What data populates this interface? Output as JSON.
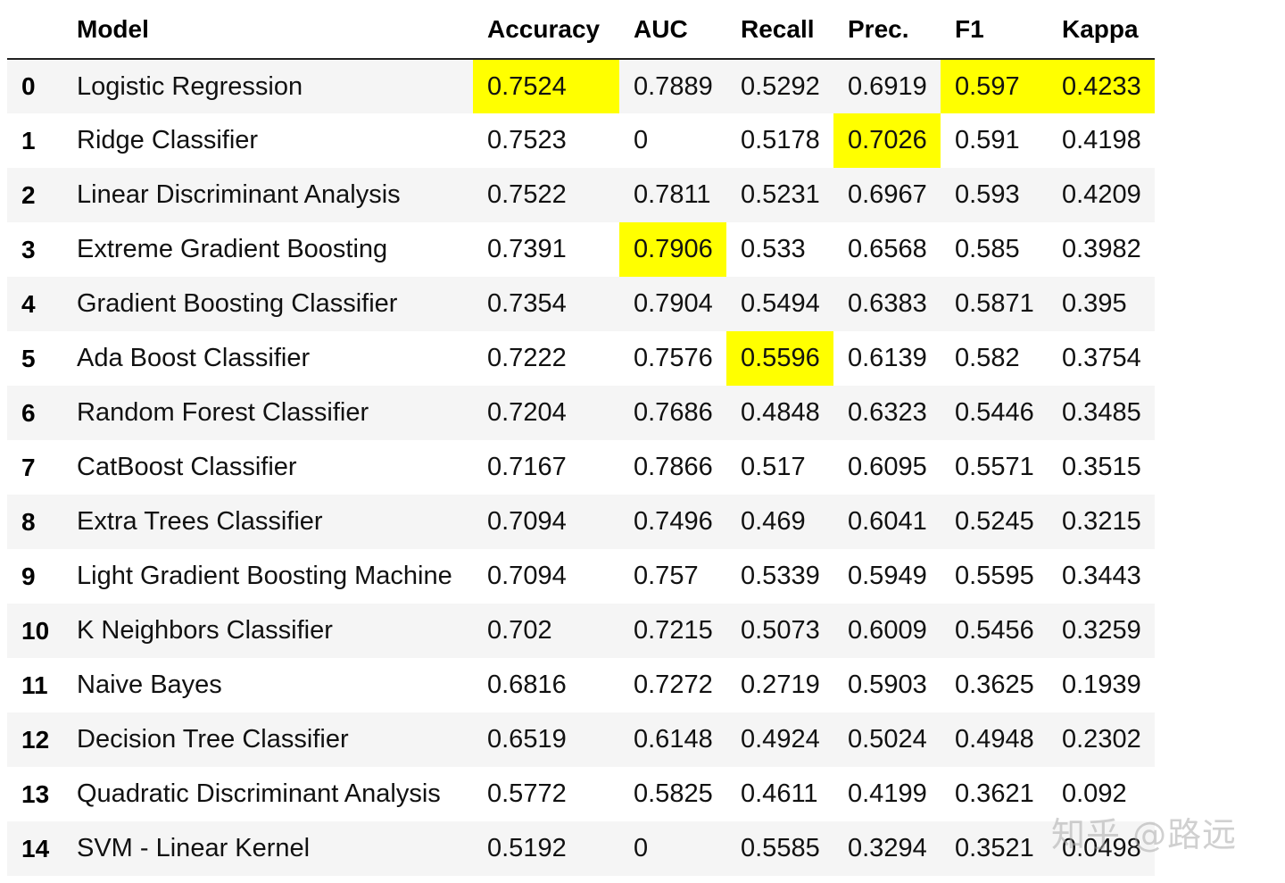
{
  "colors": {
    "highlight": "#ffff00",
    "row_stripe": "#f5f5f5",
    "text": "#000000"
  },
  "columns": [
    "",
    "Model",
    "Accuracy",
    "AUC",
    "Recall",
    "Prec.",
    "F1",
    "Kappa"
  ],
  "rows": [
    {
      "index": "0",
      "cells": [
        "Logistic Regression",
        "0.7524",
        "0.7889",
        "0.5292",
        "0.6919",
        "0.597",
        "0.4233"
      ],
      "highlight": [
        1,
        5,
        6
      ]
    },
    {
      "index": "1",
      "cells": [
        "Ridge Classifier",
        "0.7523",
        "0",
        "0.5178",
        "0.7026",
        "0.591",
        "0.4198"
      ],
      "highlight": [
        4
      ]
    },
    {
      "index": "2",
      "cells": [
        "Linear Discriminant Analysis",
        "0.7522",
        "0.7811",
        "0.5231",
        "0.6967",
        "0.593",
        "0.4209"
      ],
      "highlight": []
    },
    {
      "index": "3",
      "cells": [
        "Extreme Gradient Boosting",
        "0.7391",
        "0.7906",
        "0.533",
        "0.6568",
        "0.585",
        "0.3982"
      ],
      "highlight": [
        2
      ]
    },
    {
      "index": "4",
      "cells": [
        "Gradient Boosting Classifier",
        "0.7354",
        "0.7904",
        "0.5494",
        "0.6383",
        "0.5871",
        "0.395"
      ],
      "highlight": []
    },
    {
      "index": "5",
      "cells": [
        "Ada Boost Classifier",
        "0.7222",
        "0.7576",
        "0.5596",
        "0.6139",
        "0.582",
        "0.3754"
      ],
      "highlight": [
        3
      ]
    },
    {
      "index": "6",
      "cells": [
        "Random Forest Classifier",
        "0.7204",
        "0.7686",
        "0.4848",
        "0.6323",
        "0.5446",
        "0.3485"
      ],
      "highlight": []
    },
    {
      "index": "7",
      "cells": [
        "CatBoost Classifier",
        "0.7167",
        "0.7866",
        "0.517",
        "0.6095",
        "0.5571",
        "0.3515"
      ],
      "highlight": []
    },
    {
      "index": "8",
      "cells": [
        "Extra Trees Classifier",
        "0.7094",
        "0.7496",
        "0.469",
        "0.6041",
        "0.5245",
        "0.3215"
      ],
      "highlight": []
    },
    {
      "index": "9",
      "cells": [
        "Light Gradient Boosting Machine",
        "0.7094",
        "0.757",
        "0.5339",
        "0.5949",
        "0.5595",
        "0.3443"
      ],
      "highlight": []
    },
    {
      "index": "10",
      "cells": [
        "K Neighbors Classifier",
        "0.702",
        "0.7215",
        "0.5073",
        "0.6009",
        "0.5456",
        "0.3259"
      ],
      "highlight": []
    },
    {
      "index": "11",
      "cells": [
        "Naive Bayes",
        "0.6816",
        "0.7272",
        "0.2719",
        "0.5903",
        "0.3625",
        "0.1939"
      ],
      "highlight": []
    },
    {
      "index": "12",
      "cells": [
        "Decision Tree Classifier",
        "0.6519",
        "0.6148",
        "0.4924",
        "0.5024",
        "0.4948",
        "0.2302"
      ],
      "highlight": []
    },
    {
      "index": "13",
      "cells": [
        "Quadratic Discriminant Analysis",
        "0.5772",
        "0.5825",
        "0.4611",
        "0.4199",
        "0.3621",
        "0.092"
      ],
      "highlight": []
    },
    {
      "index": "14",
      "cells": [
        "SVM - Linear Kernel",
        "0.5192",
        "0",
        "0.5585",
        "0.3294",
        "0.3521",
        "0.0498"
      ],
      "highlight": []
    }
  ],
  "watermark": "知乎 @路远"
}
